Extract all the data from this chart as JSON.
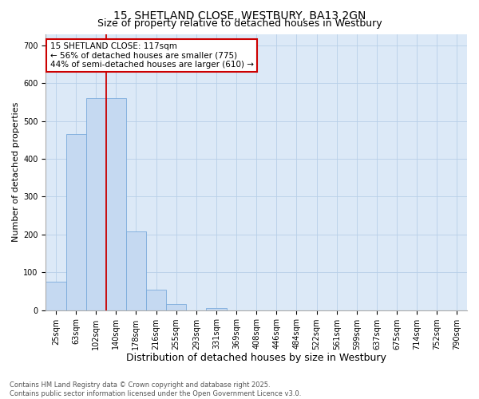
{
  "title": "15, SHETLAND CLOSE, WESTBURY, BA13 2GN",
  "subtitle": "Size of property relative to detached houses in Westbury",
  "xlabel": "Distribution of detached houses by size in Westbury",
  "ylabel": "Number of detached properties",
  "categories": [
    "25sqm",
    "63sqm",
    "102sqm",
    "140sqm",
    "178sqm",
    "216sqm",
    "255sqm",
    "293sqm",
    "331sqm",
    "369sqm",
    "408sqm",
    "446sqm",
    "484sqm",
    "522sqm",
    "561sqm",
    "599sqm",
    "637sqm",
    "675sqm",
    "714sqm",
    "752sqm",
    "790sqm"
  ],
  "values": [
    75,
    465,
    560,
    560,
    207,
    55,
    15,
    0,
    5,
    0,
    0,
    0,
    0,
    0,
    0,
    0,
    0,
    0,
    0,
    0,
    0
  ],
  "bar_color": "#c5d9f1",
  "bar_edge_color": "#7aabdc",
  "vline_color": "#cc0000",
  "vline_pos": 2.5,
  "annotation_text": "15 SHETLAND CLOSE: 117sqm\n← 56% of detached houses are smaller (775)\n44% of semi-detached houses are larger (610) →",
  "annotation_box_facecolor": "#ffffff",
  "annotation_box_edgecolor": "#cc0000",
  "ylim": [
    0,
    730
  ],
  "yticks": [
    0,
    100,
    200,
    300,
    400,
    500,
    600,
    700
  ],
  "grid_color": "#b8cfe8",
  "plot_bg_color": "#dce9f7",
  "fig_bg_color": "#ffffff",
  "footnote": "Contains HM Land Registry data © Crown copyright and database right 2025.\nContains public sector information licensed under the Open Government Licence v3.0.",
  "title_fontsize": 10,
  "subtitle_fontsize": 9,
  "xlabel_fontsize": 9,
  "ylabel_fontsize": 8,
  "tick_fontsize": 7,
  "annot_fontsize": 7.5,
  "footnote_fontsize": 6
}
